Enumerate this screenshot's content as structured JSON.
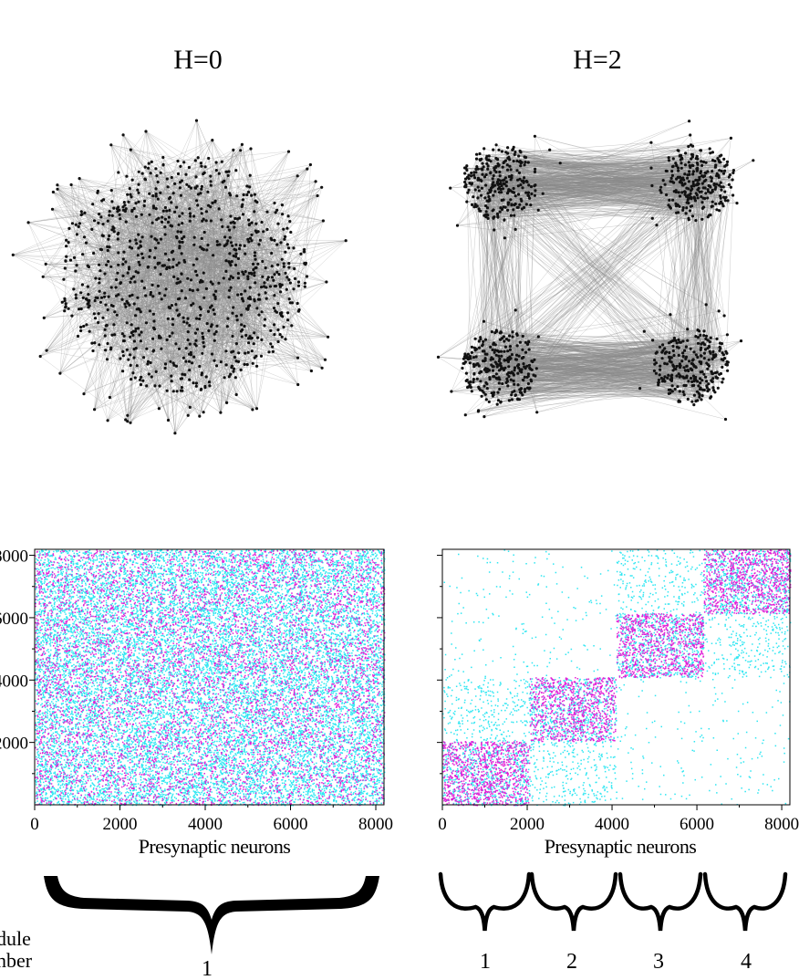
{
  "panels": [
    {
      "title": "H=0",
      "modules": 1,
      "axis": {
        "xlabel": "Presynaptic neurons",
        "xticks": [
          "0",
          "2000",
          "4000",
          "6000",
          "8000"
        ],
        "yticks": [
          "2000",
          "4000",
          "6000",
          "8000"
        ],
        "range": [
          0,
          8192
        ]
      },
      "module_labels": [
        "1"
      ]
    },
    {
      "title": "H=2",
      "modules": 4,
      "axis": {
        "xlabel": "Presynaptic neurons",
        "xticks": [
          "0",
          "2000",
          "4000",
          "6000",
          "8000"
        ],
        "yticks": [],
        "range": [
          0,
          8192
        ]
      },
      "module_labels": [
        "1",
        "2",
        "3",
        "4"
      ]
    }
  ],
  "side_label": [
    "dule",
    "nber"
  ],
  "colors": {
    "node": "#111111",
    "edge": "#8a8a8a",
    "conn_cyan": "#2ee6f2",
    "conn_magenta": "#e11fd6",
    "background": "#ffffff"
  }
}
